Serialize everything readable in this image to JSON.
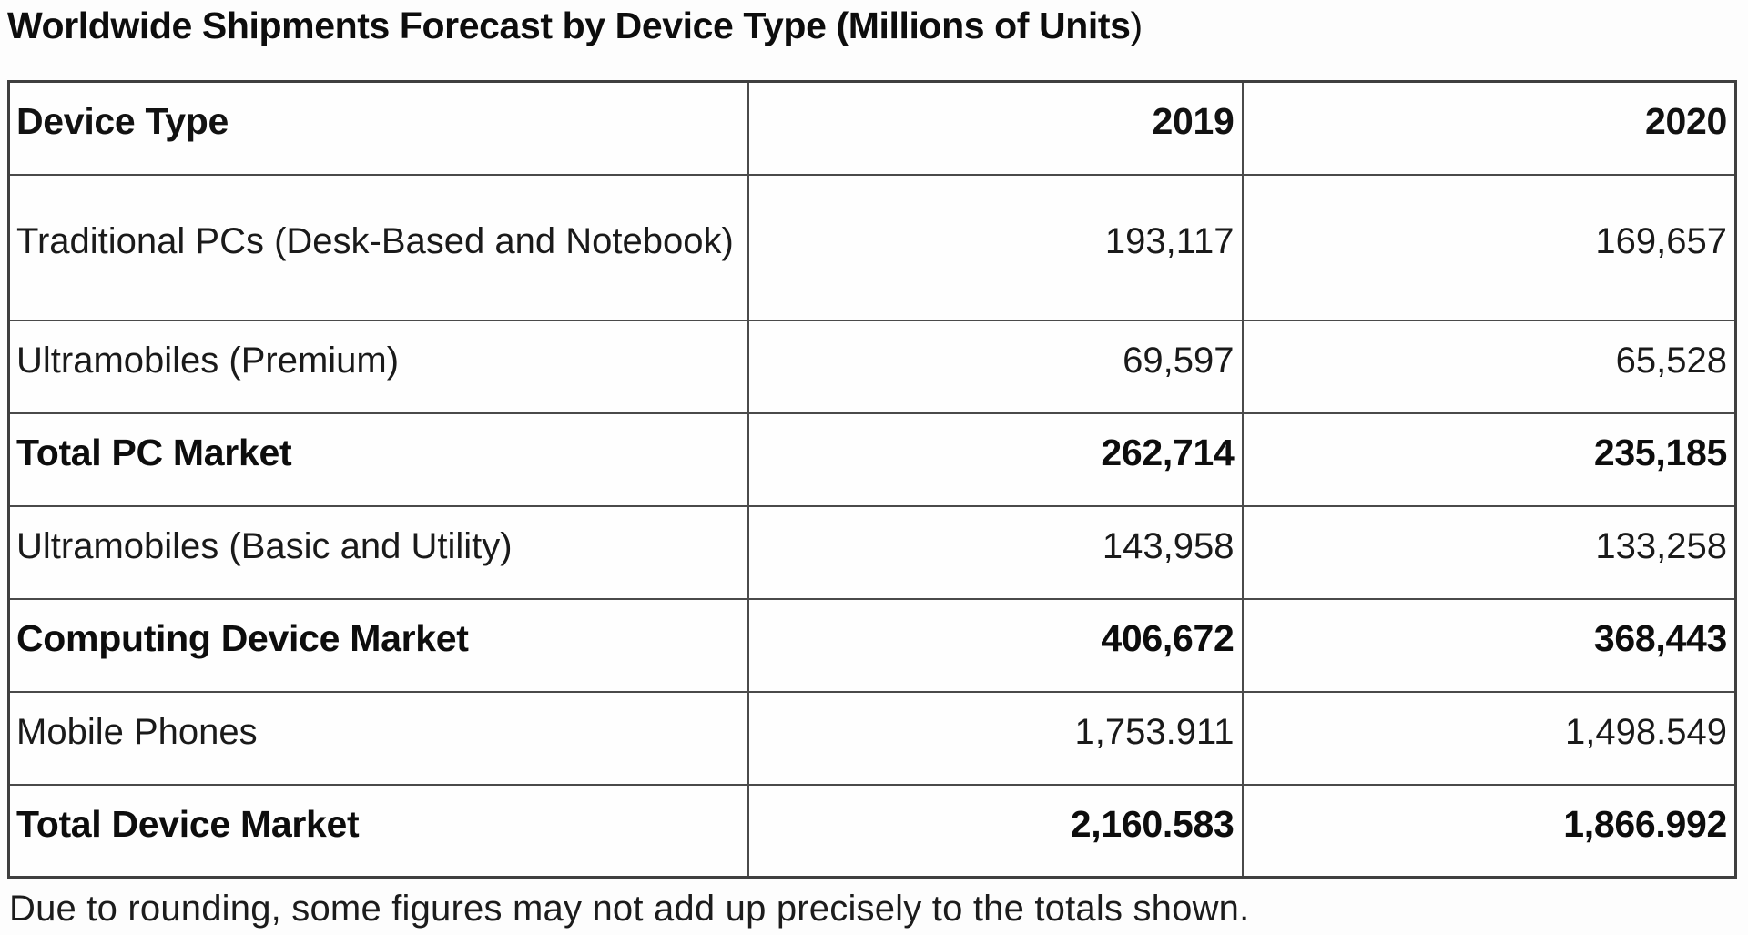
{
  "title": {
    "bold_part": "Worldwide Shipments Forecast by Device Type (Millions of Units",
    "tail": ")"
  },
  "chart_data": {
    "type": "table",
    "title": "Worldwide Shipments Forecast by Device Type (Millions of Units)",
    "columns": [
      "Device Type",
      "2019",
      "2020"
    ],
    "rows": [
      {
        "cells": [
          "Traditional PCs (Desk-Based and Notebook)",
          "193,117",
          "169,657"
        ],
        "bold": false
      },
      {
        "cells": [
          "Ultramobiles (Premium)",
          "69,597",
          "65,528"
        ],
        "bold": false
      },
      {
        "cells": [
          "Total PC Market",
          "262,714",
          "235,185"
        ],
        "bold": true
      },
      {
        "cells": [
          "Ultramobiles (Basic and Utility)",
          "143,958",
          "133,258"
        ],
        "bold": false
      },
      {
        "cells": [
          "Computing Device Market",
          "406,672",
          "368,443"
        ],
        "bold": true
      },
      {
        "cells": [
          "Mobile Phones",
          "1,753.911",
          "1,498.549"
        ],
        "bold": false
      },
      {
        "cells": [
          "Total Device Market",
          "2,160.583",
          "1,866.992"
        ],
        "bold": true
      }
    ],
    "footnote": "Due to rounding, some figures may not add up precisely to the totals shown.",
    "layout": {
      "grid": true,
      "value_alignment": "right",
      "bold_rows": [
        2,
        4,
        6
      ]
    }
  },
  "colors": {
    "background": "#fdfdfd",
    "border": "#4a4a4a",
    "text": "#121212"
  }
}
